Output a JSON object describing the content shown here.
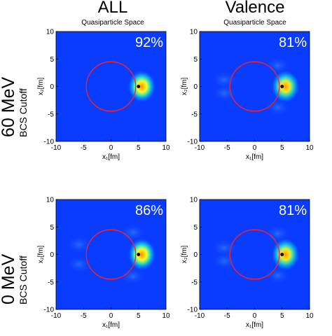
{
  "columns": [
    {
      "title": "ALL",
      "subtitle": "Quasiparticle Space"
    },
    {
      "title": "Valence",
      "subtitle": "Quasiparticle Space"
    }
  ],
  "rows": [
    {
      "label": "60 MeV",
      "sublabel": "BCS Cutoff"
    },
    {
      "label": "0 MeV",
      "sublabel": "BCS Cutoff"
    }
  ],
  "colors": {
    "background": "#0a3cff",
    "circle": "#ff2020",
    "point": "#000000",
    "percent_text": "#ffffff"
  },
  "chart_data": [
    {
      "type": "heatmap",
      "row": 0,
      "col": 0,
      "annotation": "92%",
      "xlabel": "x₁[fm]",
      "ylabel": "x₂[fm]",
      "xlim": [
        -10,
        10
      ],
      "ylim": [
        -10,
        10
      ],
      "xticks": [
        -10,
        -5,
        0,
        5,
        10
      ],
      "yticks": [
        -10,
        -5,
        0,
        5,
        10
      ],
      "circle": {
        "center": [
          0,
          0
        ],
        "radius": 4.5
      },
      "point": [
        5,
        0
      ],
      "hotspot": {
        "center": [
          5.6,
          0
        ],
        "peak": 1.0
      },
      "side_lobes": []
    },
    {
      "type": "heatmap",
      "row": 0,
      "col": 1,
      "annotation": "81%",
      "xlabel": "x₁[fm]",
      "ylabel": "x₂[fm]",
      "xlim": [
        -10,
        10
      ],
      "ylim": [
        -10,
        10
      ],
      "xticks": [
        -10,
        -5,
        0,
        5,
        10
      ],
      "yticks": [
        -10,
        -5,
        0,
        5,
        10
      ],
      "circle": {
        "center": [
          0,
          0
        ],
        "radius": 4.5
      },
      "point": [
        5,
        0
      ],
      "hotspot": {
        "center": [
          5.6,
          0
        ],
        "peak": 0.9
      },
      "side_lobes": [
        [
          4.2,
          3.8
        ],
        [
          4.2,
          -3.8
        ],
        [
          -5.5,
          1.2
        ],
        [
          -5.5,
          -1.2
        ]
      ]
    },
    {
      "type": "heatmap",
      "row": 1,
      "col": 0,
      "annotation": "86%",
      "xlabel": "x₁[fm]",
      "ylabel": "x₂[fm]",
      "xlim": [
        -10,
        10
      ],
      "ylim": [
        -10,
        10
      ],
      "xticks": [
        -10,
        -5,
        0,
        5,
        10
      ],
      "yticks": [
        -10,
        -5,
        0,
        5,
        10
      ],
      "circle": {
        "center": [
          0,
          0
        ],
        "radius": 4.5
      },
      "point": [
        5,
        0
      ],
      "hotspot": {
        "center": [
          5.6,
          0
        ],
        "peak": 1.0
      },
      "side_lobes": [
        [
          4.0,
          4.0
        ],
        [
          4.0,
          -4.0
        ],
        [
          -5.8,
          1.8
        ],
        [
          -5.8,
          -1.8
        ]
      ]
    },
    {
      "type": "heatmap",
      "row": 1,
      "col": 1,
      "annotation": "81%",
      "xlabel": "x₁[fm]",
      "ylabel": "x₂[fm]",
      "xlim": [
        -10,
        10
      ],
      "ylim": [
        -10,
        10
      ],
      "xticks": [
        -10,
        -5,
        0,
        5,
        10
      ],
      "yticks": [
        -10,
        -5,
        0,
        5,
        10
      ],
      "circle": {
        "center": [
          0,
          0
        ],
        "radius": 4.5
      },
      "point": [
        5,
        0
      ],
      "hotspot": {
        "center": [
          5.6,
          0
        ],
        "peak": 0.9
      },
      "side_lobes": [
        [
          4.2,
          3.8
        ],
        [
          4.2,
          -3.8
        ],
        [
          -5.5,
          1.2
        ],
        [
          -5.5,
          -1.2
        ]
      ]
    }
  ]
}
